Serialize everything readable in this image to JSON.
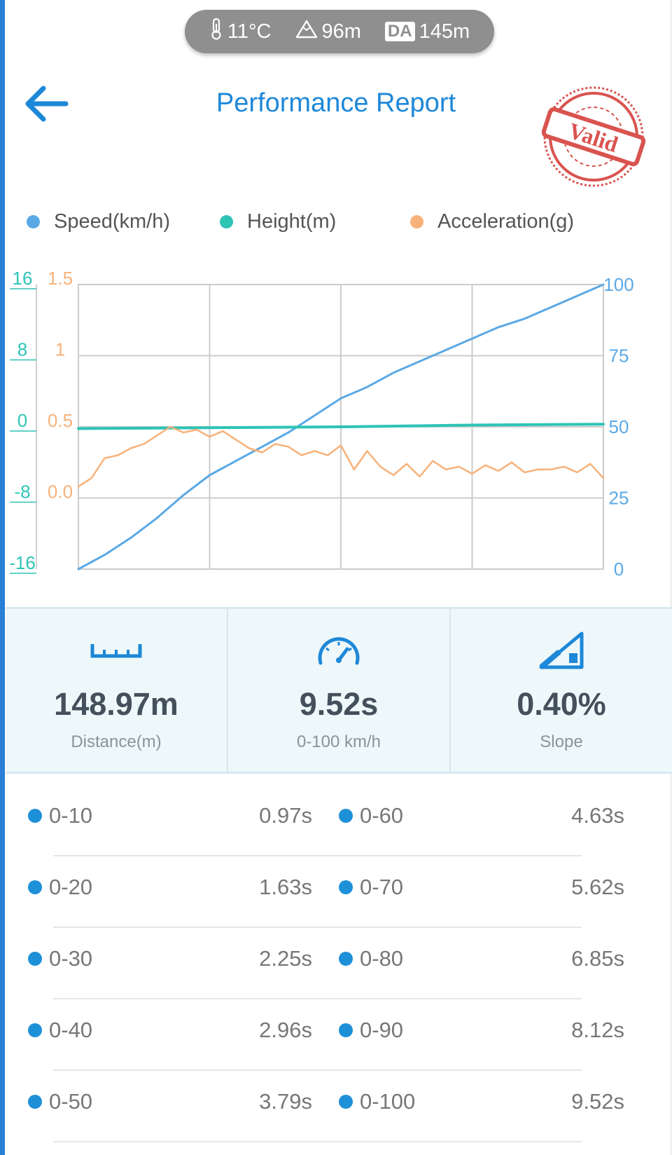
{
  "conditions": {
    "temperature": "11°C",
    "altitude": "96m",
    "da_label": "DA",
    "density_altitude": "145m"
  },
  "header": {
    "title": "Performance Report",
    "stamp_text": "Valid"
  },
  "legend": [
    {
      "label": "Speed(km/h)",
      "color": "#5aa9e6"
    },
    {
      "label": "Height(m)",
      "color": "#2ec4b6"
    },
    {
      "label": "Acceleration(g)",
      "color": "#f7b27a"
    }
  ],
  "chart_data": {
    "type": "line",
    "axes": {
      "height_left": {
        "ticks": [
          "16",
          "8",
          "0",
          "-8",
          "-16"
        ],
        "range": [
          -16,
          16
        ],
        "color": "#2ec4b6"
      },
      "accel_left": {
        "ticks": [
          "1.5",
          "1",
          "0.5",
          "0.0"
        ],
        "range": [
          -0.5,
          1.5
        ],
        "color": "#f7b27a"
      },
      "speed_right": {
        "ticks": [
          "100",
          "75",
          "50",
          "25",
          "0"
        ],
        "range": [
          0,
          100
        ],
        "color": "#5aa9e6"
      }
    },
    "grid": true,
    "series": [
      {
        "name": "Speed(km/h)",
        "color": "#5aa9e6",
        "axis": "speed_right",
        "x": [
          0,
          2,
          4,
          6,
          8,
          10,
          12,
          14,
          16,
          18,
          20,
          22,
          24,
          26,
          28,
          30,
          32,
          34,
          36,
          38,
          40
        ],
        "values": [
          0,
          5,
          11,
          18,
          26,
          33,
          38,
          43,
          48,
          54,
          60,
          64,
          69,
          73,
          77,
          81,
          85,
          88,
          92,
          96,
          100
        ]
      },
      {
        "name": "Height(m)",
        "color": "#2ec4b6",
        "axis": "height_left",
        "x": [
          0,
          10,
          20,
          30,
          40
        ],
        "values": [
          -0.2,
          -0.1,
          0,
          0.2,
          0.3
        ]
      },
      {
        "name": "Acceleration(g)",
        "color": "#f7b27a",
        "axis": "accel_left",
        "x": [
          0,
          1,
          2,
          3,
          4,
          5,
          6,
          7,
          8,
          9,
          10,
          11,
          12,
          13,
          14,
          15,
          16,
          17,
          18,
          19,
          20,
          21,
          22,
          23,
          24,
          25,
          26,
          27,
          28,
          29,
          30,
          31,
          32,
          33,
          34,
          35,
          36,
          37,
          38,
          39,
          40
        ],
        "values": [
          0.08,
          0.14,
          0.28,
          0.3,
          0.35,
          0.38,
          0.44,
          0.5,
          0.46,
          0.48,
          0.43,
          0.47,
          0.41,
          0.35,
          0.32,
          0.38,
          0.36,
          0.3,
          0.33,
          0.3,
          0.37,
          0.2,
          0.33,
          0.22,
          0.16,
          0.24,
          0.15,
          0.26,
          0.2,
          0.22,
          0.17,
          0.23,
          0.19,
          0.25,
          0.18,
          0.2,
          0.2,
          0.22,
          0.18,
          0.24,
          0.14
        ]
      }
    ]
  },
  "stats": [
    {
      "value": "148.97m",
      "label": "Distance(m)",
      "icon": "ruler-icon"
    },
    {
      "value": "9.52s",
      "label": "0-100 km/h",
      "icon": "speedometer-icon"
    },
    {
      "value": "0.40%",
      "label": "Slope",
      "icon": "slope-icon"
    }
  ],
  "splits": [
    {
      "left": {
        "label": "0-10",
        "time": "0.97s"
      },
      "right": {
        "label": "0-60",
        "time": "4.63s"
      }
    },
    {
      "left": {
        "label": "0-20",
        "time": "1.63s"
      },
      "right": {
        "label": "0-70",
        "time": "5.62s"
      }
    },
    {
      "left": {
        "label": "0-30",
        "time": "2.25s"
      },
      "right": {
        "label": "0-80",
        "time": "6.85s"
      }
    },
    {
      "left": {
        "label": "0-40",
        "time": "2.96s"
      },
      "right": {
        "label": "0-90",
        "time": "8.12s"
      }
    },
    {
      "left": {
        "label": "0-50",
        "time": "3.79s"
      },
      "right": {
        "label": "0-100",
        "time": "9.52s"
      }
    }
  ]
}
